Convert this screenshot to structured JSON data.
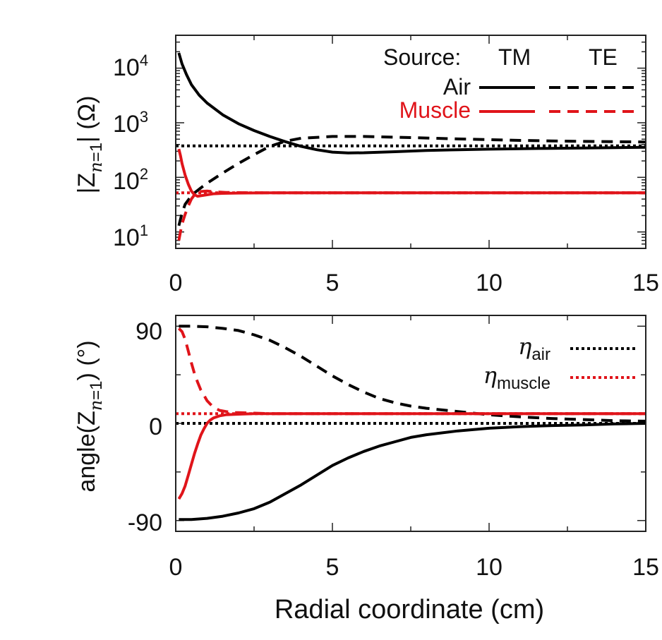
{
  "colors": {
    "air": "#000000",
    "muscle": "#e0141a"
  },
  "chart_data": [
    {
      "type": "line",
      "name": "top",
      "yscale": "log",
      "xlim": [
        0,
        15
      ],
      "ylim": [
        5,
        40000
      ],
      "x_ticks": [
        "0",
        "5",
        "10",
        "15"
      ],
      "y_ticks": [
        {
          "base": "10",
          "exp": "1"
        },
        {
          "base": "10",
          "exp": "2"
        },
        {
          "base": "10",
          "exp": "3"
        },
        {
          "base": "10",
          "exp": "4"
        }
      ],
      "ylabel": {
        "pre": "|Z",
        "var": "n",
        "eq": "=1",
        "post": "| (Ω)"
      },
      "legend": {
        "header_label": "Source:",
        "header_tm": "TM",
        "header_te": "TE",
        "rows": [
          {
            "label": "Air",
            "color": "air"
          },
          {
            "label": "Muscle",
            "color": "muscle"
          }
        ]
      },
      "series": [
        {
          "name": "Air TM",
          "color": "air",
          "dash": "solid",
          "x": [
            0.1,
            0.2,
            0.35,
            0.5,
            0.75,
            1.0,
            1.5,
            2.0,
            2.5,
            3.0,
            3.5,
            4.0,
            4.5,
            5.0,
            5.5,
            6.0,
            7.0,
            8.0,
            9.0,
            10.0,
            11.0,
            12.0,
            13.0,
            14.0,
            15.0
          ],
          "y": [
            19000,
            12000,
            7500,
            5000,
            3200,
            2300,
            1400,
            960,
            720,
            560,
            450,
            370,
            320,
            290,
            280,
            282,
            295,
            310,
            320,
            328,
            335,
            340,
            345,
            350,
            355
          ]
        },
        {
          "name": "Air TE",
          "color": "air",
          "dash": "dashed",
          "x": [
            0.1,
            0.2,
            0.3,
            0.45,
            0.6,
            0.8,
            1.0,
            1.5,
            2.0,
            2.5,
            3.0,
            3.5,
            4.0,
            5.0,
            6.0,
            7.0,
            8.0,
            9.0,
            10.0,
            11.0,
            12.0,
            13.0,
            14.0,
            15.0
          ],
          "y": [
            13,
            22,
            32,
            42,
            52,
            64,
            78,
            120,
            180,
            260,
            370,
            460,
            520,
            560,
            560,
            545,
            525,
            505,
            490,
            475,
            465,
            455,
            450,
            445
          ]
        },
        {
          "name": "Muscle TM",
          "color": "muscle",
          "dash": "solid",
          "x": [
            0.1,
            0.15,
            0.2,
            0.3,
            0.4,
            0.5,
            0.6,
            0.7,
            0.8,
            1.0,
            1.2,
            1.5,
            2.0,
            3.0,
            5.0,
            8.0,
            10.0,
            12.0,
            15.0
          ],
          "y": [
            330,
            250,
            180,
            110,
            75,
            56,
            48,
            45,
            46,
            48,
            50,
            51,
            51.5,
            52,
            52,
            52,
            52,
            52,
            52
          ]
        },
        {
          "name": "Muscle TE",
          "color": "muscle",
          "dash": "dashed",
          "x": [
            0.1,
            0.15,
            0.2,
            0.3,
            0.4,
            0.5,
            0.6,
            0.8,
            1.0,
            1.3,
            1.6,
            2.0,
            3.0,
            5.0,
            8.0,
            10.0,
            12.0,
            15.0
          ],
          "y": [
            7,
            10,
            14,
            21,
            30,
            40,
            48,
            55,
            56,
            54,
            53,
            52.5,
            52,
            52,
            52,
            52,
            52,
            52
          ]
        },
        {
          "name": "eta air",
          "color": "air",
          "dash": "dotted",
          "x": [
            0,
            15
          ],
          "y": [
            377,
            377
          ]
        },
        {
          "name": "eta muscle",
          "color": "muscle",
          "dash": "dotted",
          "x": [
            0,
            15
          ],
          "y": [
            52,
            52
          ]
        }
      ]
    },
    {
      "type": "line",
      "name": "bottom",
      "yscale": "linear",
      "xlim": [
        0,
        15
      ],
      "ylim": [
        -100,
        100
      ],
      "x_ticks": [
        "0",
        "5",
        "10",
        "15"
      ],
      "y_ticks": [
        "-90",
        "0",
        "90"
      ],
      "xlabel": "Radial coordinate (cm)",
      "ylabel": {
        "pre": "angle(Z",
        "var": "n",
        "eq": "=1",
        "post": ") (°)"
      },
      "legend": {
        "rows": [
          {
            "symbol": "η",
            "sub": "air",
            "color": "air"
          },
          {
            "symbol": "η",
            "sub": "muscle",
            "color": "muscle"
          }
        ]
      },
      "series": [
        {
          "name": "Air TM",
          "color": "air",
          "dash": "solid",
          "x": [
            0.1,
            0.5,
            1.0,
            1.5,
            2.0,
            2.5,
            3.0,
            3.5,
            4.0,
            4.5,
            5.0,
            5.5,
            6.0,
            6.5,
            7.0,
            7.5,
            8.0,
            9.0,
            10.0,
            11.0,
            12.0,
            13.0,
            14.0,
            15.0
          ],
          "y": [
            -89,
            -89,
            -88,
            -86,
            -83,
            -79,
            -73,
            -65,
            -57,
            -48,
            -39,
            -32,
            -26,
            -21,
            -17,
            -13,
            -10.5,
            -7,
            -4.5,
            -3,
            -2,
            -1.5,
            -0.5,
            0
          ]
        },
        {
          "name": "Air TE",
          "color": "air",
          "dash": "dashed",
          "x": [
            0.1,
            0.5,
            1.0,
            1.5,
            2.0,
            2.5,
            3.0,
            3.5,
            4.0,
            4.5,
            5.0,
            5.5,
            6.0,
            6.5,
            7.0,
            7.5,
            8.0,
            9.0,
            10.0,
            11.0,
            12.0,
            13.0,
            14.0,
            15.0
          ],
          "y": [
            90,
            90,
            89.5,
            88,
            86,
            82,
            77,
            70,
            62,
            53,
            44,
            36,
            29,
            23,
            19,
            16,
            14,
            11,
            8,
            6,
            4.5,
            3.5,
            2.5,
            2
          ]
        },
        {
          "name": "Muscle TM",
          "color": "muscle",
          "dash": "solid",
          "x": [
            0.1,
            0.2,
            0.3,
            0.4,
            0.5,
            0.6,
            0.7,
            0.8,
            0.9,
            1.0,
            1.1,
            1.2,
            1.4,
            1.6,
            2.0,
            2.5,
            3.0,
            5.0,
            10.0,
            15.0
          ],
          "y": [
            -70,
            -65,
            -58,
            -48,
            -38,
            -28,
            -19,
            -11,
            -5,
            0,
            3,
            5,
            7,
            8,
            8.5,
            9,
            9,
            9,
            9,
            9
          ]
        },
        {
          "name": "Muscle TE",
          "color": "muscle",
          "dash": "dashed",
          "x": [
            0.1,
            0.2,
            0.3,
            0.4,
            0.5,
            0.6,
            0.7,
            0.8,
            0.9,
            1.0,
            1.1,
            1.2,
            1.4,
            1.6,
            1.8,
            2.0,
            2.5,
            3.0,
            5.0,
            10.0,
            15.0
          ],
          "y": [
            88,
            85,
            78,
            67,
            56,
            46,
            38,
            31,
            26,
            21,
            18,
            15,
            12,
            11,
            10,
            10,
            9.5,
            9,
            9,
            9,
            9
          ]
        },
        {
          "name": "eta air",
          "color": "air",
          "dash": "dotted",
          "x": [
            0,
            15
          ],
          "y": [
            0,
            0
          ]
        },
        {
          "name": "eta muscle",
          "color": "muscle",
          "dash": "dotted",
          "x": [
            0,
            15
          ],
          "y": [
            9,
            9
          ]
        }
      ]
    }
  ]
}
